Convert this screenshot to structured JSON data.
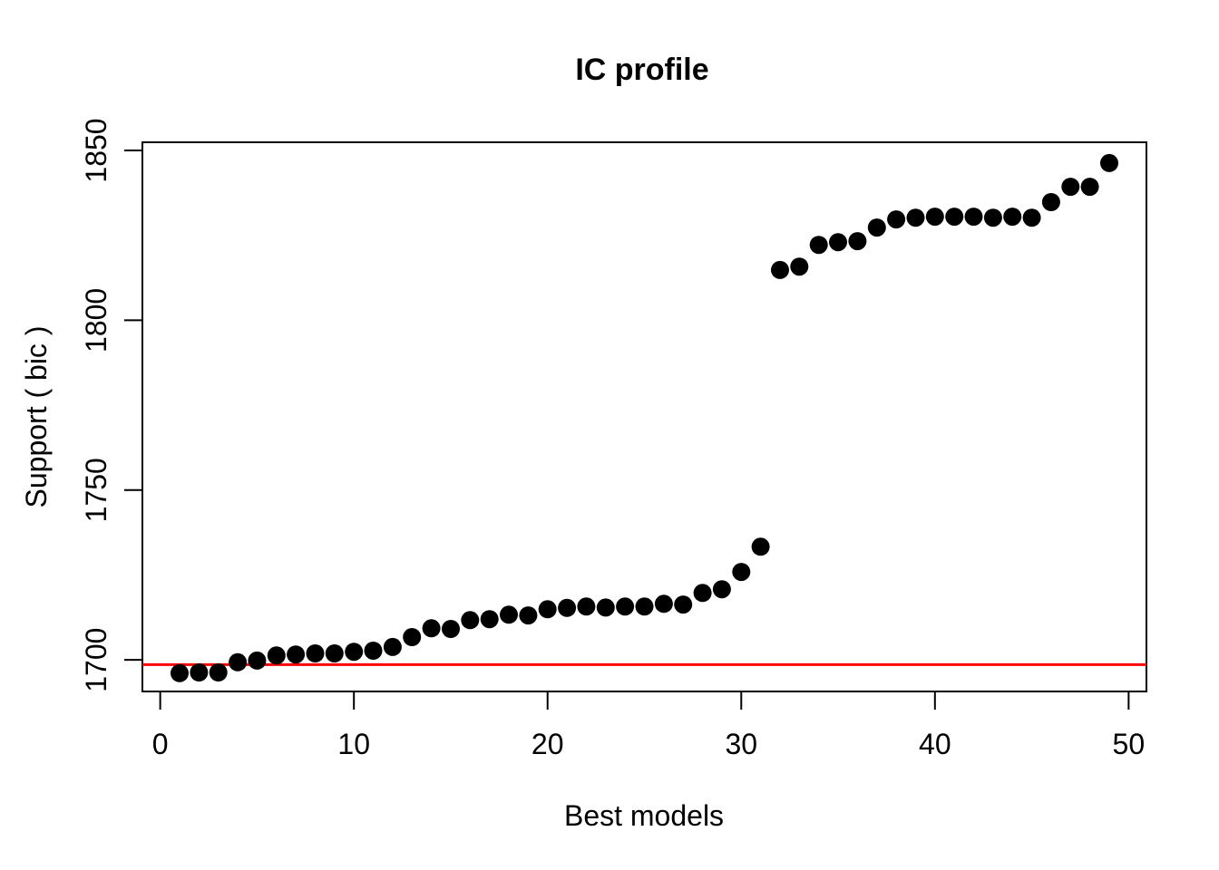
{
  "chart_data": {
    "type": "scatter",
    "title": "IC profile",
    "xlabel": "Best models",
    "ylabel": "Support ( bic )",
    "x_ticks": [
      0,
      10,
      20,
      30,
      40,
      50
    ],
    "y_ticks": [
      1700,
      1750,
      1800,
      1850
    ],
    "xlim": [
      -0.92,
      50.92
    ],
    "ylim": [
      1690.7,
      1852.4
    ],
    "grid": false,
    "legend": "none",
    "point_color": "#000000",
    "background_color": "#ffffff",
    "reference_line": {
      "orientation": "horizontal",
      "value": 1698.6,
      "color": "#ff0000"
    },
    "x": [
      1,
      2,
      3,
      4,
      5,
      6,
      7,
      8,
      9,
      10,
      11,
      12,
      13,
      14,
      15,
      16,
      17,
      18,
      19,
      20,
      21,
      22,
      23,
      24,
      25,
      26,
      27,
      28,
      29,
      30,
      31,
      32,
      33,
      34,
      35,
      36,
      37,
      38,
      39,
      40,
      41,
      42,
      43,
      44,
      45,
      46,
      47,
      48,
      49
    ],
    "y": [
      1696.1,
      1696.3,
      1696.3,
      1699.3,
      1699.8,
      1701.3,
      1701.6,
      1701.9,
      1701.9,
      1702.4,
      1702.7,
      1703.8,
      1706.7,
      1709.3,
      1709.1,
      1711.7,
      1712.0,
      1713.3,
      1713.1,
      1714.9,
      1715.3,
      1715.7,
      1715.4,
      1715.7,
      1715.7,
      1716.5,
      1716.3,
      1719.7,
      1720.8,
      1725.9,
      1733.3,
      1814.8,
      1815.8,
      1822.2,
      1823.0,
      1823.3,
      1827.3,
      1829.7,
      1830.2,
      1830.5,
      1830.5,
      1830.5,
      1830.2,
      1830.5,
      1830.2,
      1834.8,
      1839.3,
      1839.3,
      1846.3
    ]
  }
}
